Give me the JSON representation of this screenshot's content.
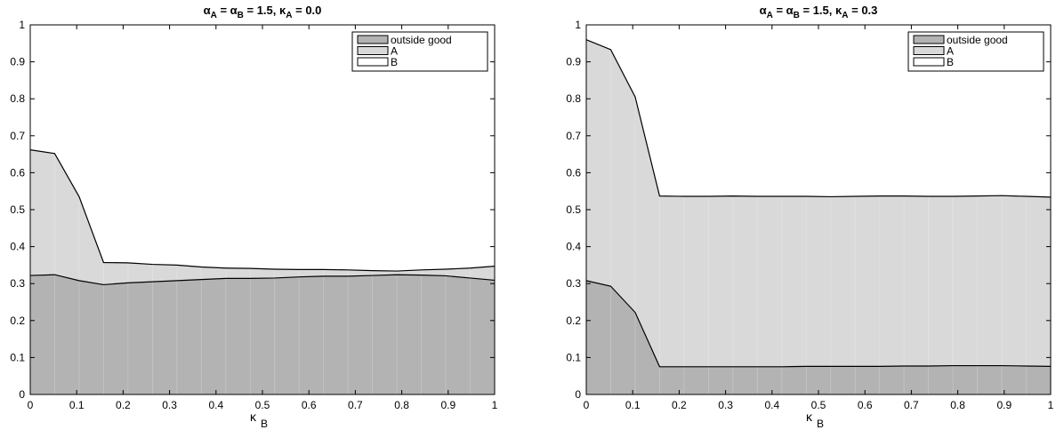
{
  "chart_data": [
    {
      "type": "area",
      "title_parts": {
        "a": "α",
        "sa": "A",
        "eq1": " = ",
        "b": "α",
        "sb": "B",
        "val1": " = 1.5, ",
        "k": "κ",
        "sk": "A",
        "val2": " = 0.0"
      },
      "xlabel": {
        "sym": "κ",
        "sub": "B"
      },
      "ylabel": "",
      "xlim": [
        0,
        1
      ],
      "ylim": [
        0,
        1
      ],
      "xticks": [
        "0",
        "0.1",
        "0.2",
        "0.3",
        "0.4",
        "0.5",
        "0.6",
        "0.7",
        "0.8",
        "0.9",
        "1"
      ],
      "yticks": [
        "0",
        "0.1",
        "0.2",
        "0.3",
        "0.4",
        "0.5",
        "0.6",
        "0.7",
        "0.8",
        "0.9",
        "1"
      ],
      "grid": false,
      "legend_position": "top-right",
      "x": [
        0,
        0.0526,
        0.1053,
        0.1579,
        0.2105,
        0.2632,
        0.3158,
        0.3684,
        0.4211,
        0.4737,
        0.5263,
        0.5789,
        0.6316,
        0.6842,
        0.7368,
        0.7895,
        0.8421,
        0.8947,
        0.9474,
        1
      ],
      "series": [
        {
          "name": "outside good",
          "color": "#b3b3b3",
          "values": [
            0.322,
            0.324,
            0.308,
            0.297,
            0.302,
            0.305,
            0.308,
            0.311,
            0.314,
            0.314,
            0.315,
            0.318,
            0.32,
            0.32,
            0.322,
            0.324,
            0.323,
            0.321,
            0.315,
            0.309
          ]
        },
        {
          "name": "A",
          "color": "#d9d9d9",
          "values": [
            0.34,
            0.328,
            0.227,
            0.06,
            0.054,
            0.047,
            0.042,
            0.034,
            0.028,
            0.027,
            0.024,
            0.02,
            0.018,
            0.017,
            0.013,
            0.01,
            0.014,
            0.018,
            0.027,
            0.038
          ]
        },
        {
          "name": "B",
          "color": "#ffffff",
          "values": [
            0.338,
            0.348,
            0.465,
            0.643,
            0.644,
            0.648,
            0.65,
            0.655,
            0.658,
            0.659,
            0.661,
            0.662,
            0.662,
            0.663,
            0.665,
            0.666,
            0.663,
            0.661,
            0.658,
            0.653
          ]
        }
      ]
    },
    {
      "type": "area",
      "title_parts": {
        "a": "α",
        "sa": "A",
        "eq1": " = ",
        "b": "α",
        "sb": "B",
        "val1": " = 1.5, ",
        "k": "κ",
        "sk": "A",
        "val2": " = 0.3"
      },
      "xlabel": {
        "sym": "κ",
        "sub": "B"
      },
      "ylabel": "",
      "xlim": [
        0,
        1
      ],
      "ylim": [
        0,
        1
      ],
      "xticks": [
        "0",
        "0.1",
        "0.2",
        "0.3",
        "0.4",
        "0.5",
        "0.6",
        "0.7",
        "0.8",
        "0.9",
        "1"
      ],
      "yticks": [
        "0",
        "0.1",
        "0.2",
        "0.3",
        "0.4",
        "0.5",
        "0.6",
        "0.7",
        "0.8",
        "0.9",
        "1"
      ],
      "grid": false,
      "legend_position": "top-right",
      "x": [
        0,
        0.0526,
        0.1053,
        0.1579,
        0.2105,
        0.2632,
        0.3158,
        0.3684,
        0.4211,
        0.4737,
        0.5263,
        0.5789,
        0.6316,
        0.6842,
        0.7368,
        0.7895,
        0.8421,
        0.8947,
        0.9474,
        1
      ],
      "series": [
        {
          "name": "outside good",
          "color": "#b3b3b3",
          "values": [
            0.308,
            0.293,
            0.222,
            0.075,
            0.075,
            0.075,
            0.075,
            0.075,
            0.075,
            0.076,
            0.076,
            0.076,
            0.076,
            0.077,
            0.077,
            0.078,
            0.078,
            0.078,
            0.077,
            0.076
          ]
        },
        {
          "name": "A",
          "color": "#d9d9d9",
          "values": [
            0.652,
            0.64,
            0.583,
            0.462,
            0.461,
            0.461,
            0.462,
            0.461,
            0.461,
            0.46,
            0.459,
            0.46,
            0.461,
            0.46,
            0.459,
            0.458,
            0.459,
            0.46,
            0.459,
            0.458
          ]
        },
        {
          "name": "B",
          "color": "#ffffff",
          "values": [
            0.04,
            0.067,
            0.195,
            0.463,
            0.464,
            0.464,
            0.463,
            0.464,
            0.464,
            0.464,
            0.465,
            0.464,
            0.463,
            0.463,
            0.464,
            0.464,
            0.463,
            0.462,
            0.464,
            0.466
          ]
        }
      ]
    }
  ]
}
